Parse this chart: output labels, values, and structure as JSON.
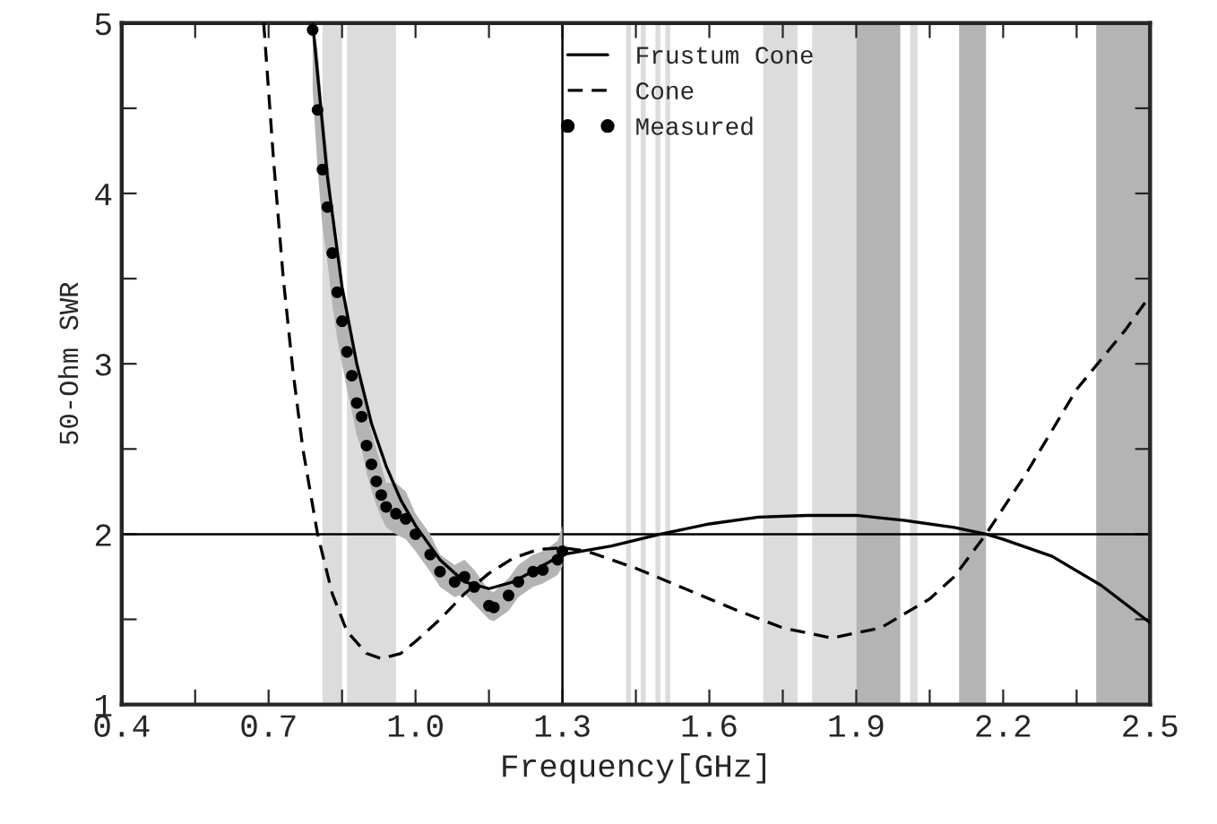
{
  "chart_data": {
    "type": "line",
    "xlabel": "Frequency[GHz]",
    "ylabel": "50-Ohm SWR",
    "xlim": [
      0.4,
      2.5
    ],
    "ylim": [
      1,
      5
    ],
    "xticks": [
      0.4,
      {
        "value": 0.55,
        "label": null
      },
      0.7,
      {
        "value": 0.85,
        "label": null
      },
      {
        "value": 1.0,
        "label": "1.0"
      },
      {
        "value": 1.15,
        "label": null
      },
      1.3,
      {
        "value": 1.45,
        "label": null
      },
      1.6,
      {
        "value": 1.75,
        "label": null
      },
      1.9,
      {
        "value": 2.05,
        "label": null
      },
      2.2,
      {
        "value": 2.35,
        "label": null
      },
      2.5
    ],
    "yticks": [
      1,
      {
        "value": 1.5,
        "label": null
      },
      2,
      {
        "value": 2.5,
        "label": null
      },
      3,
      {
        "value": 3.5,
        "label": null
      },
      4,
      {
        "value": 4.5,
        "label": null
      },
      5
    ],
    "grid": false,
    "legend": "top",
    "ref_lines": [
      {
        "axis": "y",
        "value": 2,
        "color": "#000000",
        "line_style": "solid"
      },
      {
        "axis": "x",
        "value": 1.3,
        "color": "#000000",
        "line_style": "solid"
      }
    ],
    "bands": [
      {
        "axis": "x",
        "from": 0.81,
        "to": 0.85,
        "color": "#dcdcdc"
      },
      {
        "axis": "x",
        "from": 0.86,
        "to": 0.96,
        "color": "#dcdcdc"
      },
      {
        "axis": "x",
        "from": 1.43,
        "to": 1.44,
        "color": "#dcdcdc"
      },
      {
        "axis": "x",
        "from": 1.46,
        "to": 1.47,
        "color": "#dcdcdc"
      },
      {
        "axis": "x",
        "from": 1.49,
        "to": 1.5,
        "color": "#dcdcdc"
      },
      {
        "axis": "x",
        "from": 1.51,
        "to": 1.52,
        "color": "#dcdcdc"
      },
      {
        "axis": "x",
        "from": 1.71,
        "to": 1.78,
        "color": "#dcdcdc"
      },
      {
        "axis": "x",
        "from": 1.81,
        "to": 1.9,
        "color": "#dcdcdc"
      },
      {
        "axis": "x",
        "from": 1.9,
        "to": 1.99,
        "color": "#b4b4b4"
      },
      {
        "axis": "x",
        "from": 2.01,
        "to": 2.025,
        "color": "#dcdcdc"
      },
      {
        "axis": "x",
        "from": 2.11,
        "to": 2.165,
        "color": "#b4b4b4"
      },
      {
        "axis": "x",
        "from": 2.39,
        "to": 2.5,
        "color": "#b4b4b4"
      }
    ],
    "series": [
      {
        "name": "Frustum Cone",
        "color": "#000000",
        "line_style": "solid",
        "x": [
          0.79,
          0.82,
          0.85,
          0.88,
          0.91,
          0.94,
          0.97,
          1.0,
          1.05,
          1.1,
          1.15,
          1.2,
          1.25,
          1.3,
          1.4,
          1.5,
          1.6,
          1.7,
          1.8,
          1.85,
          1.9,
          2.0,
          2.1,
          2.165,
          2.2,
          2.3,
          2.4,
          2.5
        ],
        "values": [
          5.0,
          4.1,
          3.45,
          3.0,
          2.65,
          2.4,
          2.2,
          2.05,
          1.85,
          1.72,
          1.68,
          1.72,
          1.8,
          1.88,
          1.93,
          2.0,
          2.06,
          2.1,
          2.11,
          2.11,
          2.11,
          2.08,
          2.04,
          2.0,
          1.97,
          1.87,
          1.7,
          1.48
        ]
      },
      {
        "name": "Cone",
        "color": "#000000",
        "line_style": "dashed",
        "x": [
          0.69,
          0.71,
          0.73,
          0.75,
          0.77,
          0.8,
          0.83,
          0.86,
          0.9,
          0.93,
          0.97,
          1.0,
          1.05,
          1.1,
          1.15,
          1.2,
          1.25,
          1.3,
          1.35,
          1.45,
          1.55,
          1.65,
          1.75,
          1.85,
          1.95,
          2.05,
          2.1,
          2.165,
          2.25,
          2.35,
          2.45,
          2.5
        ],
        "values": [
          5.0,
          4.2,
          3.5,
          2.95,
          2.5,
          2.0,
          1.65,
          1.43,
          1.3,
          1.27,
          1.3,
          1.37,
          1.5,
          1.65,
          1.77,
          1.86,
          1.91,
          1.92,
          1.9,
          1.8,
          1.68,
          1.56,
          1.45,
          1.39,
          1.45,
          1.62,
          1.75,
          2.0,
          2.37,
          2.85,
          3.2,
          3.4
        ]
      },
      {
        "name": "Measured",
        "type": "scatter",
        "color": "#000000",
        "marker": "circle",
        "x": [
          0.79,
          0.8,
          0.81,
          0.82,
          0.83,
          0.84,
          0.85,
          0.86,
          0.87,
          0.88,
          0.89,
          0.9,
          0.91,
          0.92,
          0.93,
          0.94,
          0.96,
          0.98,
          1.0,
          1.03,
          1.05,
          1.08,
          1.1,
          1.12,
          1.15,
          1.16,
          1.19,
          1.21,
          1.24,
          1.26,
          1.29,
          1.3
        ],
        "values": [
          4.96,
          4.49,
          4.14,
          3.92,
          3.65,
          3.42,
          3.25,
          3.07,
          2.93,
          2.77,
          2.69,
          2.52,
          2.41,
          2.31,
          2.23,
          2.16,
          2.12,
          2.09,
          2.0,
          1.88,
          1.78,
          1.72,
          1.75,
          1.69,
          1.58,
          1.57,
          1.64,
          1.72,
          1.78,
          1.79,
          1.85,
          1.9
        ],
        "lower": [
          4.6,
          4.15,
          3.8,
          3.6,
          3.35,
          3.15,
          3.0,
          2.85,
          2.72,
          2.58,
          2.5,
          2.36,
          2.26,
          2.17,
          2.1,
          2.04,
          2.0,
          1.97,
          1.9,
          1.78,
          1.69,
          1.63,
          1.65,
          1.59,
          1.5,
          1.49,
          1.55,
          1.63,
          1.69,
          1.71,
          1.76,
          1.81
        ],
        "upper": [
          5.0,
          4.85,
          4.5,
          4.25,
          3.95,
          3.7,
          3.5,
          3.3,
          3.15,
          2.98,
          2.9,
          2.72,
          2.6,
          2.5,
          2.4,
          2.3,
          2.3,
          2.25,
          2.12,
          2.0,
          1.88,
          1.82,
          1.85,
          1.79,
          1.67,
          1.66,
          1.74,
          1.82,
          1.88,
          1.9,
          1.96,
          2.05
        ]
      }
    ]
  }
}
